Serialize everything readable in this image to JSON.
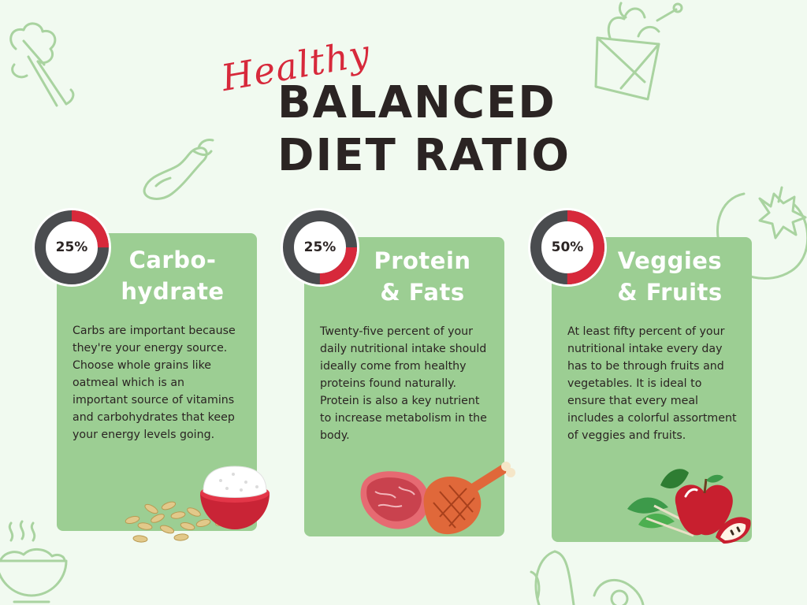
{
  "title": {
    "script_word": "Healthy",
    "line1": "BALANCED",
    "line2": "DIET RATIO"
  },
  "colors": {
    "background": "#f1faf0",
    "card": "#9cce93",
    "accent_red": "#d7293b",
    "ring_dark": "#4a4c4f",
    "text_dark": "#2b2423",
    "outline_green": "#a9d3a0"
  },
  "cards": [
    {
      "percent_label": "25%",
      "percent_value": 25,
      "heading_lines": [
        "Carbo-",
        "hydrate"
      ],
      "body": "Carbs are important because they're your energy source. Choose whole grains like oatmeal which is an important source of vitamins and carbohydrates that keep your energy levels going.",
      "illustration": "rice-bowl-and-oats-icon"
    },
    {
      "percent_label": "25%",
      "percent_value": 25,
      "heading_lines": [
        "Protein",
        "& Fats"
      ],
      "body": "Twenty-five percent of your daily nutritional intake should ideally come from healthy proteins found naturally. Protein is also a key nutrient to increase metabolism in the body.",
      "illustration": "steak-and-drumstick-icon"
    },
    {
      "percent_label": "50%",
      "percent_value": 50,
      "heading_lines": [
        "Veggies",
        "& Fruits"
      ],
      "body": "At least fifty percent of your nutritional intake every day has to be through fruits and vegetables. It is ideal to ensure that every meal includes a colorful assortment of veggies and fruits.",
      "illustration": "apple-and-greens-icon"
    }
  ],
  "decorations": [
    "lettuce-icon",
    "eggplant-icon",
    "grocery-bag-icon",
    "tomato-icon",
    "steaming-bowl-icon",
    "avocado-icon"
  ]
}
